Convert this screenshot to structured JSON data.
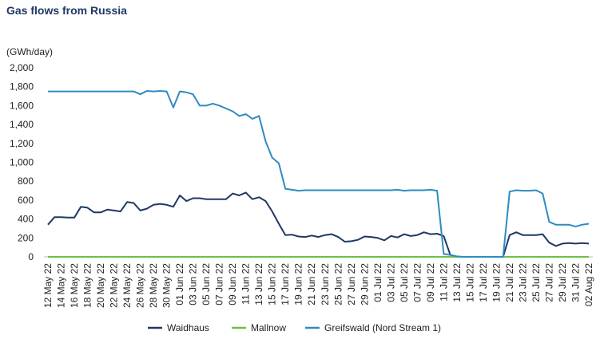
{
  "chart_data": {
    "type": "line",
    "title": "Gas flows from Russia",
    "y_label": "(GWh/day)",
    "categories": [
      "12 May 22",
      null,
      "14 May 22",
      null,
      "16 May 22",
      null,
      "18 May 22",
      null,
      "20 May 22",
      null,
      "22 May 22",
      null,
      "24 May 22",
      null,
      "26 May 22",
      null,
      "28 May 22",
      null,
      "30 May 22",
      null,
      "01 Jun 22",
      null,
      "03 Jun 22",
      null,
      "05 Jun 22",
      null,
      "07 Jun 22",
      null,
      "09 Jun 22",
      null,
      "11 Jun 22",
      null,
      "13 Jun 22",
      null,
      "15 Jun 22",
      null,
      "17 Jun 22",
      null,
      "19 Jun 22",
      null,
      "21 Jun 22",
      null,
      "23 Jun 22",
      null,
      "25 Jun 22",
      null,
      "27 Jun 22",
      null,
      "29 Jun 22",
      null,
      "01 Jul 22",
      null,
      "03 Jul 22",
      null,
      "05 Jul 22",
      null,
      "07 Jul 22",
      null,
      "09 Jul 22",
      null,
      "11 Jul 22",
      null,
      "13 Jul 22",
      null,
      "15 Jul 22",
      null,
      "17 Jul 22",
      null,
      "19 Jul 22",
      null,
      "21 Jul 22",
      null,
      "23 Jul 22",
      null,
      "25 Jul 22",
      null,
      "27 Jul 22",
      null,
      "29 Jul 22",
      null,
      "31 Jul 22",
      null,
      "02 Aug 22"
    ],
    "series": [
      {
        "name": "Waidhaus",
        "color": "#1f3864",
        "values": [
          340,
          420,
          420,
          415,
          415,
          530,
          520,
          470,
          470,
          500,
          490,
          480,
          580,
          570,
          490,
          510,
          550,
          560,
          550,
          530,
          650,
          590,
          620,
          620,
          610,
          610,
          610,
          610,
          670,
          650,
          680,
          610,
          630,
          590,
          480,
          350,
          230,
          235,
          215,
          210,
          225,
          210,
          230,
          240,
          210,
          160,
          165,
          180,
          215,
          210,
          200,
          175,
          220,
          205,
          240,
          220,
          230,
          260,
          240,
          245,
          220,
          20,
          0,
          0,
          0,
          0,
          0,
          0,
          0,
          0,
          230,
          260,
          230,
          230,
          230,
          240,
          150,
          115,
          140,
          145,
          140,
          145,
          140
        ]
      },
      {
        "name": "Mallnow",
        "color": "#6cc04a",
        "values": [
          0,
          0,
          0,
          0,
          0,
          0,
          0,
          0,
          0,
          0,
          0,
          0,
          0,
          0,
          0,
          0,
          0,
          0,
          0,
          0,
          0,
          0,
          0,
          0,
          0,
          0,
          0,
          0,
          0,
          0,
          0,
          0,
          0,
          0,
          0,
          0,
          0,
          0,
          0,
          0,
          0,
          0,
          0,
          0,
          0,
          0,
          0,
          0,
          0,
          0,
          0,
          0,
          0,
          0,
          0,
          0,
          0,
          0,
          0,
          0,
          0,
          0,
          0,
          0,
          0,
          0,
          0,
          0,
          0,
          0,
          0,
          0,
          0,
          0,
          0,
          0,
          0,
          0,
          0,
          0,
          0,
          0,
          0
        ]
      },
      {
        "name": "Greifswald (Nord Stream 1)",
        "color": "#2e8bc0",
        "values": [
          1750,
          1750,
          1750,
          1750,
          1750,
          1750,
          1750,
          1750,
          1750,
          1750,
          1750,
          1750,
          1750,
          1750,
          1720,
          1755,
          1750,
          1755,
          1750,
          1580,
          1750,
          1740,
          1720,
          1600,
          1600,
          1620,
          1600,
          1570,
          1540,
          1490,
          1510,
          1460,
          1490,
          1220,
          1050,
          990,
          720,
          710,
          700,
          705,
          705,
          705,
          705,
          705,
          705,
          705,
          705,
          705,
          705,
          705,
          705,
          705,
          705,
          710,
          700,
          705,
          705,
          705,
          710,
          700,
          30,
          20,
          5,
          0,
          0,
          0,
          0,
          0,
          0,
          0,
          690,
          705,
          700,
          700,
          705,
          670,
          370,
          340,
          340,
          340,
          320,
          340,
          350
        ]
      }
    ],
    "ylim": [
      0,
      2000
    ],
    "yticks": [
      0,
      200,
      400,
      600,
      800,
      {
        "value": 1000,
        "label": "1,000"
      },
      {
        "value": 1200,
        "label": "1,200"
      },
      {
        "value": 1400,
        "label": "1,400"
      },
      {
        "value": 1600,
        "label": "1,600"
      },
      {
        "value": 1800,
        "label": "1,800"
      },
      {
        "value": 2000,
        "label": "2,000"
      }
    ],
    "grid": false,
    "legend": "bottom"
  }
}
